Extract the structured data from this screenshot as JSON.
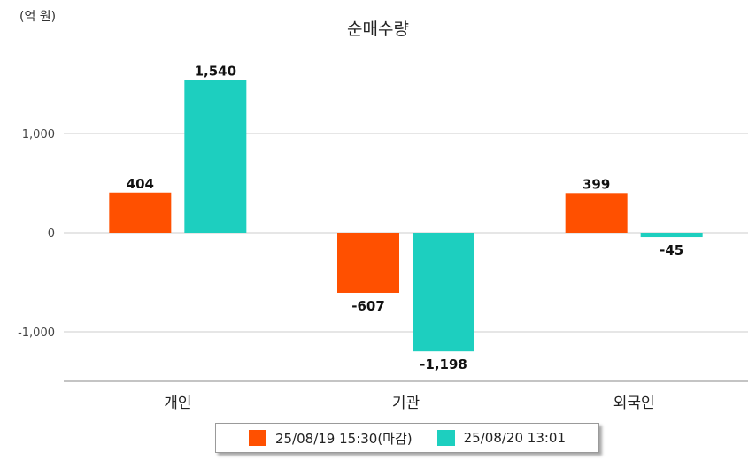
{
  "chart_data": {
    "type": "bar",
    "title": "순매수량",
    "unit_label": "(억 원)",
    "categories": [
      "개인",
      "기관",
      "외국인"
    ],
    "series": [
      {
        "name": "25/08/19 15:30(마감)",
        "color": "#FF5000",
        "values": [
          404,
          -607,
          399
        ],
        "labels": [
          "404",
          "-607",
          "399"
        ]
      },
      {
        "name": "25/08/20 13:01",
        "color": "#1DCFBF",
        "values": [
          1540,
          -1198,
          -45
        ],
        "labels": [
          "1,540",
          "-1,198",
          "-45"
        ]
      }
    ],
    "yticks": [
      1000,
      0,
      -1000
    ],
    "ytick_labels": [
      "1,000",
      "0",
      "-1,000"
    ],
    "ylim": [
      -1500,
      1950
    ],
    "grid": true,
    "legend_position": "bottom"
  }
}
